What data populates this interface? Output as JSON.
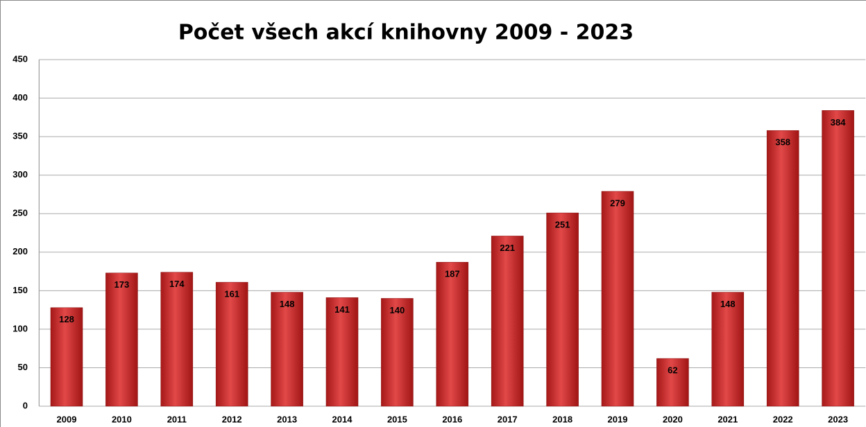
{
  "chart_data": {
    "type": "bar",
    "title": "Počet všech akcí knihovny 2009 - 2023",
    "categories": [
      "2009",
      "2010",
      "2011",
      "2012",
      "2013",
      "2014",
      "2015",
      "2016",
      "2017",
      "2018",
      "2019",
      "2020",
      "2021",
      "2022",
      "2023"
    ],
    "values": [
      128,
      173,
      174,
      161,
      148,
      141,
      140,
      187,
      221,
      251,
      279,
      62,
      148,
      358,
      384
    ],
    "color": "#d42a2a",
    "ylim": [
      0,
      450
    ],
    "yticks": [
      0,
      50,
      100,
      150,
      200,
      250,
      300,
      350,
      400,
      450
    ],
    "grid": true
  }
}
